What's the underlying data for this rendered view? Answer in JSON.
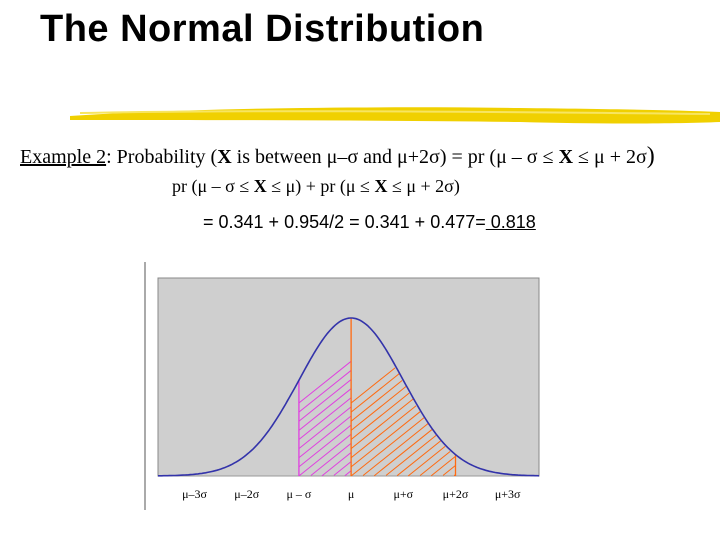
{
  "title": "The Normal Distribution",
  "example": {
    "label": "Example 2",
    "colon": ":",
    "lead": " Probability (",
    "var": "X",
    "middle": " is between ",
    "range": "μ–σ and μ+2σ",
    "eq_pr": ") = pr (",
    "eq_a": "μ – σ ≤ ",
    "eq_var": "X",
    "eq_b": " ≤ μ + 2σ",
    "eq_close": ")"
  },
  "split": {
    "part1_open": "pr (μ – σ ≤ ",
    "part1_var": "X",
    "part1_close": " ≤ μ)",
    "plus": "  +  ",
    "part2_open": "pr (μ ≤ ",
    "part2_var": "X",
    "part2_close": " ≤ μ + 2σ)"
  },
  "result": {
    "text1": "= 0.341  +  0.954/2   =  0.341  +  0.477=",
    "answer": " 0.818"
  },
  "colors": {
    "curve": "#3333aa",
    "plot_bg": "#cfcfcf",
    "hatch_left": "#e040e0",
    "hatch_right": "#ff6a10",
    "rule": "#f0d000"
  },
  "chart_data": {
    "type": "area",
    "x_tick_labels": [
      "μ–3σ",
      "μ–2σ",
      "μ – σ",
      "μ",
      "μ+σ",
      "μ+2σ",
      "μ+3σ"
    ],
    "xlim": [
      -3.7,
      3.6
    ],
    "curve": "standard normal density",
    "shaded_regions": [
      {
        "from": -1,
        "to": 0,
        "style": "hatch",
        "color": "#e040e0"
      },
      {
        "from": 0,
        "to": 2,
        "style": "hatch",
        "color": "#ff6a10"
      }
    ]
  }
}
